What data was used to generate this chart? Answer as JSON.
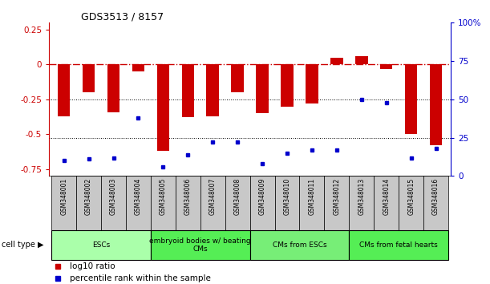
{
  "title": "GDS3513 / 8157",
  "samples": [
    "GSM348001",
    "GSM348002",
    "GSM348003",
    "GSM348004",
    "GSM348005",
    "GSM348006",
    "GSM348007",
    "GSM348008",
    "GSM348009",
    "GSM348010",
    "GSM348011",
    "GSM348012",
    "GSM348013",
    "GSM348014",
    "GSM348015",
    "GSM348016"
  ],
  "log10_ratio": [
    -0.37,
    -0.2,
    -0.34,
    -0.05,
    -0.62,
    -0.38,
    -0.37,
    -0.2,
    -0.35,
    -0.3,
    -0.28,
    0.05,
    0.06,
    -0.03,
    -0.5,
    -0.58
  ],
  "percentile_rank": [
    10,
    11,
    12,
    38,
    6,
    14,
    22,
    22,
    8,
    15,
    17,
    17,
    50,
    48,
    12,
    18
  ],
  "cell_type_groups": [
    {
      "label": "ESCs",
      "start": 0,
      "end": 3,
      "color": "#AAFFAA"
    },
    {
      "label": "embryoid bodies w/ beating\nCMs",
      "start": 4,
      "end": 7,
      "color": "#55EE55"
    },
    {
      "label": "CMs from ESCs",
      "start": 8,
      "end": 11,
      "color": "#77EE77"
    },
    {
      "label": "CMs from fetal hearts",
      "start": 12,
      "end": 15,
      "color": "#55EE55"
    }
  ],
  "bar_color": "#CC0000",
  "dot_color": "#0000CC",
  "ylim_left": [
    -0.8,
    0.3
  ],
  "ylim_right": [
    0,
    100
  ],
  "yticks_left": [
    -0.75,
    -0.5,
    -0.25,
    0,
    0.25
  ],
  "yticks_right": [
    0,
    25,
    50,
    75,
    100
  ],
  "legend_ratio_label": "log10 ratio",
  "legend_pct_label": "percentile rank within the sample"
}
